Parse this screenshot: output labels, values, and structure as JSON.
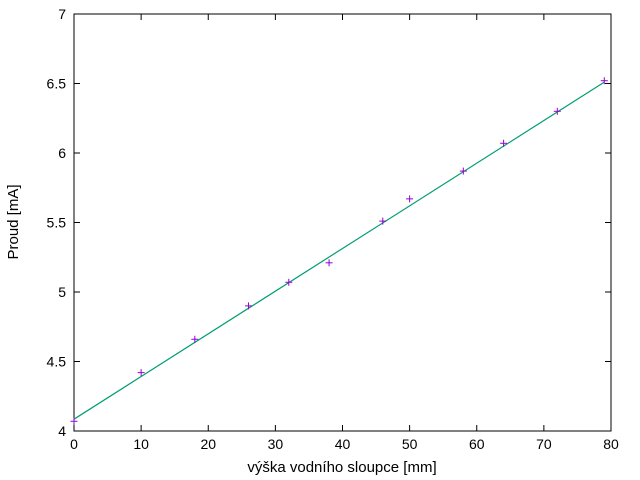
{
  "chart_data": {
    "type": "scatter",
    "title": "",
    "xlabel": "výška vodního sloupce [mm]",
    "ylabel": "Proud [mA]",
    "xlim": [
      0,
      80
    ],
    "ylim": [
      4,
      7
    ],
    "x_ticks": [
      0,
      10,
      20,
      30,
      40,
      50,
      60,
      70,
      80
    ],
    "y_ticks": [
      4,
      4.5,
      5,
      5.5,
      6,
      6.5,
      7
    ],
    "y_tick_labels": [
      "4",
      "4.5",
      "5",
      "5.5",
      "6",
      "6.5",
      "7"
    ],
    "grid": false,
    "legend": "none",
    "series": [
      {
        "kind": "points",
        "marker": "plus",
        "color": "#9400d3",
        "x": [
          0,
          10,
          18,
          26,
          32,
          38,
          46,
          50,
          58,
          64,
          72,
          79
        ],
        "y": [
          4.07,
          4.42,
          4.66,
          4.9,
          5.07,
          5.21,
          5.51,
          5.67,
          5.87,
          6.07,
          6.3,
          6.52
        ]
      },
      {
        "kind": "fit-line",
        "color": "#009e73",
        "x": [
          0,
          79
        ],
        "y": [
          4.085,
          6.51
        ]
      }
    ]
  }
}
